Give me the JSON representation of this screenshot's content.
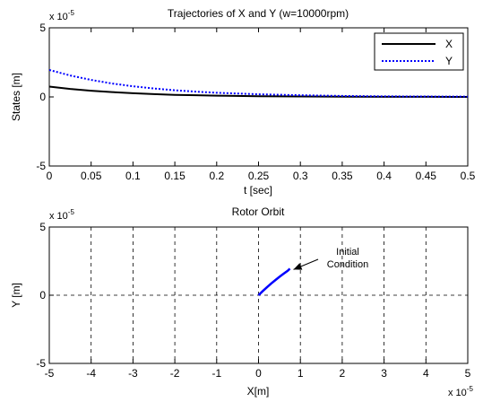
{
  "chart_data": [
    {
      "type": "line",
      "title": "Trajectories of X and Y (w=10000rpm)",
      "xlabel": "t [sec]",
      "ylabel": "States [m]",
      "scale_note": "x 10",
      "scale_exp": "-5",
      "xlim": [
        0,
        0.5
      ],
      "ylim": [
        -5,
        5
      ],
      "xticks": [
        "0",
        "0.05",
        "0.1",
        "0.15",
        "0.2",
        "0.25",
        "0.3",
        "0.35",
        "0.4",
        "0.45",
        "0.5"
      ],
      "yticks": [
        "-5",
        "0",
        "5"
      ],
      "grid": false,
      "legend_position": "top-right",
      "x": [
        0,
        0.025,
        0.05,
        0.075,
        0.1,
        0.125,
        0.15,
        0.175,
        0.2,
        0.25,
        0.3,
        0.35,
        0.4,
        0.45,
        0.5
      ],
      "series": [
        {
          "name": "X",
          "color": "#000000",
          "style": "solid",
          "values": [
            0.75,
            0.58,
            0.45,
            0.35,
            0.27,
            0.2,
            0.15,
            0.12,
            0.09,
            0.05,
            0.03,
            0.02,
            0.01,
            0.01,
            0
          ]
        },
        {
          "name": "Y",
          "color": "#0000ff",
          "style": "dotted",
          "values": [
            1.95,
            1.55,
            1.23,
            0.97,
            0.77,
            0.61,
            0.48,
            0.38,
            0.3,
            0.19,
            0.12,
            0.07,
            0.04,
            0.03,
            0.02
          ]
        }
      ]
    },
    {
      "type": "line",
      "title": "Rotor Orbit",
      "xlabel": "X[m]",
      "ylabel": "Y [m]",
      "scale_note": "x 10",
      "scale_exp": "-5",
      "x_scale_note": "x 10",
      "x_scale_exp": "-5",
      "xlim": [
        -5,
        5
      ],
      "ylim": [
        -5,
        5
      ],
      "xticks": [
        "-5",
        "-4",
        "-3",
        "-2",
        "-1",
        "0",
        "1",
        "2",
        "3",
        "4",
        "5"
      ],
      "yticks": [
        "-5",
        "0",
        "5"
      ],
      "grid": true,
      "annotation": {
        "lines": [
          "Initial",
          "Condition"
        ],
        "at": [
          0.75,
          1.95
        ]
      },
      "series": [
        {
          "color": "#0000ff",
          "x": [
            0,
            0.1,
            0.2,
            0.3,
            0.4,
            0.5,
            0.6,
            0.7,
            0.75
          ],
          "y": [
            0,
            0.3,
            0.58,
            0.85,
            1.1,
            1.35,
            1.58,
            1.8,
            1.95
          ]
        }
      ]
    }
  ]
}
